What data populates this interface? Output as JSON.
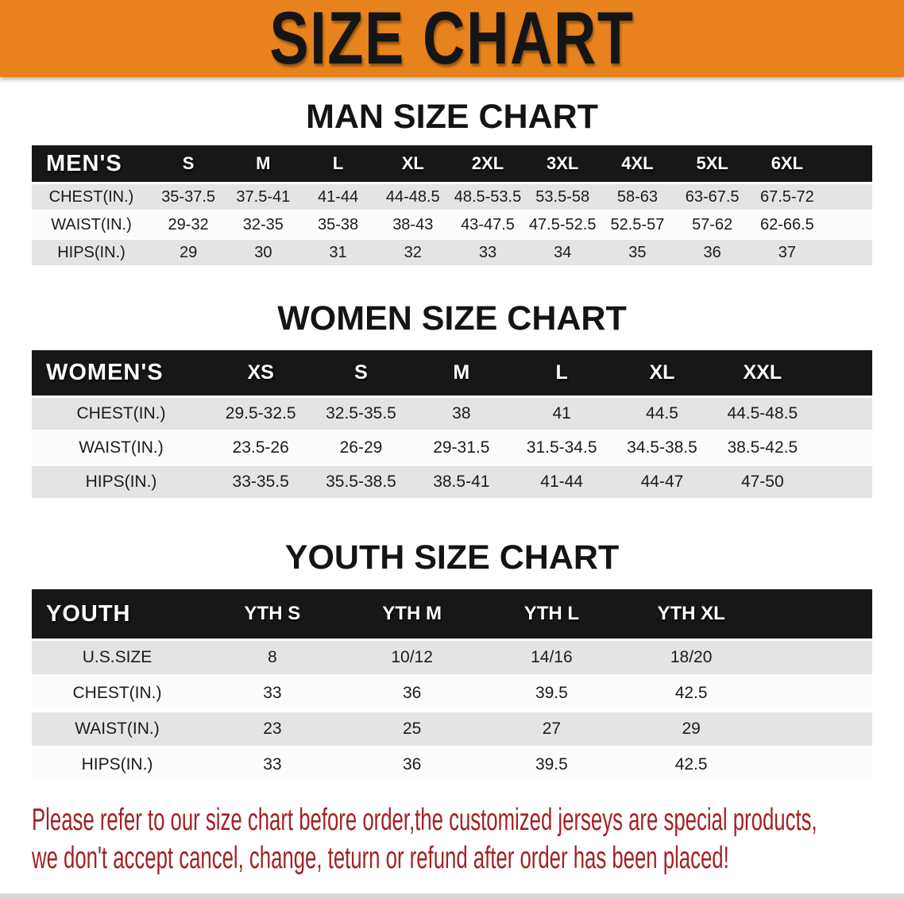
{
  "banner": {
    "title": "SIZE CHART"
  },
  "sections": [
    {
      "id": "men",
      "title": "MAN SIZE CHART",
      "table": {
        "header_label": "MEN'S",
        "columns": [
          "S",
          "M",
          "L",
          "XL",
          "2XL",
          "3XL",
          "4XL",
          "5XL",
          "6XL"
        ],
        "rows": [
          {
            "label": "CHEST(IN.)",
            "values": [
              "35-37.5",
              "37.5-41",
              "41-44",
              "44-48.5",
              "48.5-53.5",
              "53.5-58",
              "58-63",
              "63-67.5",
              "67.5-72"
            ]
          },
          {
            "label": "WAIST(IN.)",
            "values": [
              "29-32",
              "32-35",
              "35-38",
              "38-43",
              "43-47.5",
              "47.5-52.5",
              "52.5-57",
              "57-62",
              "62-66.5"
            ]
          },
          {
            "label": "HIPS(IN.)",
            "values": [
              "29",
              "30",
              "31",
              "32",
              "33",
              "34",
              "35",
              "36",
              "37"
            ]
          }
        ]
      }
    },
    {
      "id": "women",
      "title": "WOMEN SIZE CHART",
      "table": {
        "header_label": "WOMEN'S",
        "columns": [
          "XS",
          "S",
          "M",
          "L",
          "XL",
          "XXL"
        ],
        "rows": [
          {
            "label": "CHEST(IN.)",
            "values": [
              "29.5-32.5",
              "32.5-35.5",
              "38",
              "41",
              "44.5",
              "44.5-48.5"
            ]
          },
          {
            "label": "WAIST(IN.)",
            "values": [
              "23.5-26",
              "26-29",
              "29-31.5",
              "31.5-34.5",
              "34.5-38.5",
              "38.5-42.5"
            ]
          },
          {
            "label": "HIPS(IN.)",
            "values": [
              "33-35.5",
              "35.5-38.5",
              "38.5-41",
              "41-44",
              "44-47",
              "47-50"
            ]
          }
        ]
      }
    },
    {
      "id": "youth",
      "title": "YOUTH SIZE CHART",
      "table": {
        "header_label": "YOUTH",
        "columns": [
          "YTH S",
          "YTH M",
          "YTH L",
          "YTH XL"
        ],
        "rows": [
          {
            "label": "U.S.SIZE",
            "values": [
              "8",
              "10/12",
              "14/16",
              "18/20"
            ]
          },
          {
            "label": "CHEST(IN.)",
            "values": [
              "33",
              "36",
              "39.5",
              "42.5"
            ]
          },
          {
            "label": "WAIST(IN.)",
            "values": [
              "23",
              "25",
              "27",
              "29"
            ]
          },
          {
            "label": "HIPS(IN.)",
            "values": [
              "33",
              "36",
              "39.5",
              "42.5"
            ]
          }
        ]
      }
    }
  ],
  "disclaimer": {
    "line1": "Please refer to our size chart before order,the customized jerseys are special products,",
    "line2": "we don't accept cancel, change, teturn or refund after order has been placed!"
  },
  "colors": {
    "orange": "#e8821c",
    "band": "#171717",
    "row_gray": "#e4e4e4",
    "row_white": "#fcfcfc",
    "ink": "#1a1a1a",
    "red": "#a32125",
    "strip": "#d9d9d9"
  }
}
